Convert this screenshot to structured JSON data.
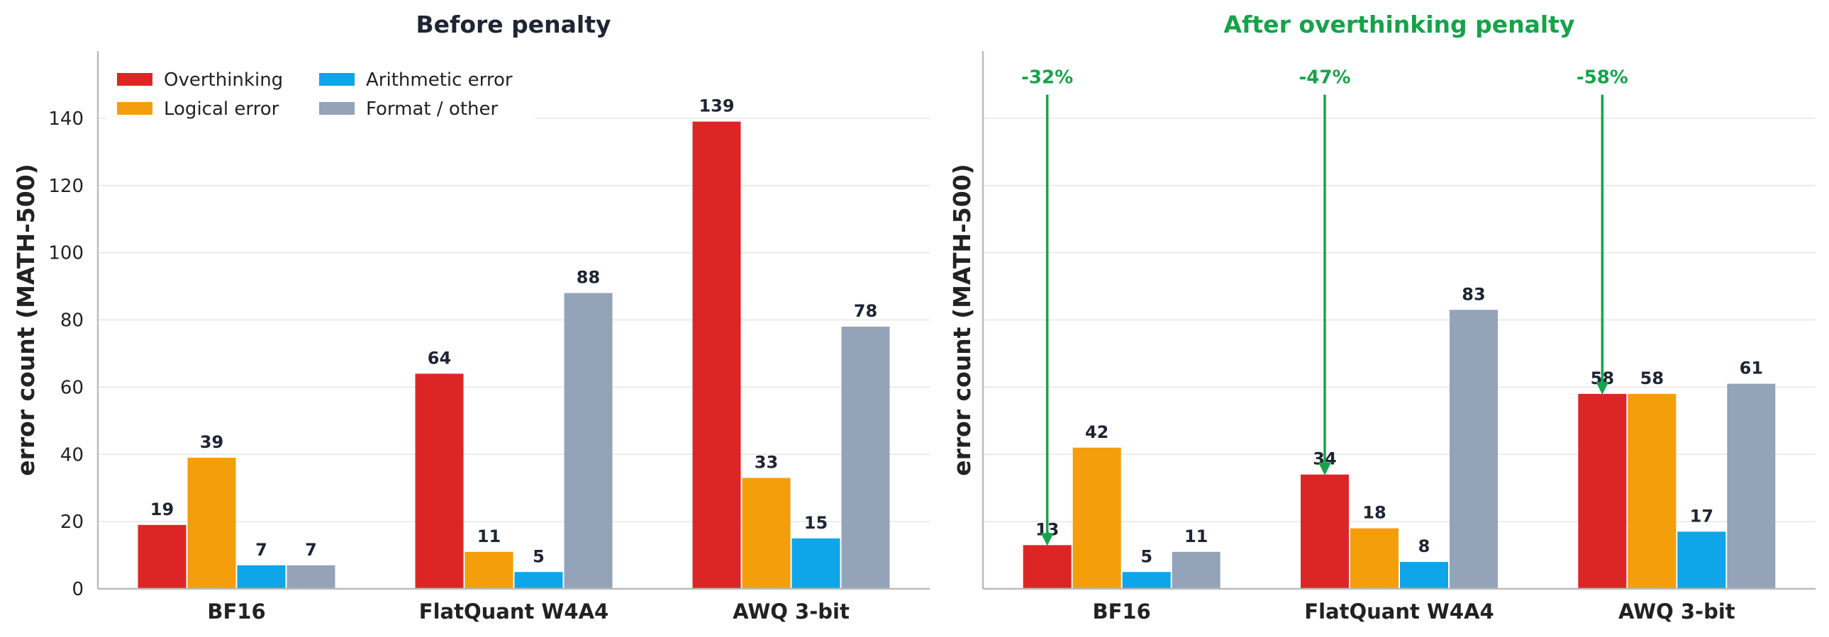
{
  "chart_data": [
    {
      "type": "bar",
      "title": "Before penalty",
      "title_color": "#1e2533",
      "ylabel": "error count (MATH-500)",
      "ylim": [
        0,
        160
      ],
      "yticks": [
        0,
        20,
        40,
        60,
        80,
        100,
        120,
        140
      ],
      "grid": true,
      "legend_position": "top-left",
      "categories": [
        "BF16",
        "FlatQuant W4A4",
        "AWQ 3-bit"
      ],
      "series": [
        {
          "name": "Overthinking",
          "color": "#dc2626",
          "values": [
            19,
            64,
            139
          ]
        },
        {
          "name": "Logical error",
          "color": "#f59e0b",
          "values": [
            39,
            11,
            33
          ]
        },
        {
          "name": "Arithmetic error",
          "color": "#0ea5e9",
          "values": [
            7,
            5,
            15
          ]
        },
        {
          "name": "Format / other",
          "color": "#94a3b8",
          "values": [
            7,
            88,
            78
          ]
        }
      ]
    },
    {
      "type": "bar",
      "title": "After overthinking penalty",
      "title_color": "#16a34a",
      "ylabel": "error count (MATH-500)",
      "ylim": [
        0,
        160
      ],
      "yticks": [
        0,
        20,
        40,
        60,
        80,
        100,
        120,
        140
      ],
      "grid": true,
      "categories": [
        "BF16",
        "FlatQuant W4A4",
        "AWQ 3-bit"
      ],
      "series": [
        {
          "name": "Overthinking",
          "color": "#dc2626",
          "values": [
            13,
            34,
            58
          ]
        },
        {
          "name": "Logical error",
          "color": "#f59e0b",
          "values": [
            42,
            18,
            58
          ]
        },
        {
          "name": "Arithmetic error",
          "color": "#0ea5e9",
          "values": [
            5,
            8,
            17
          ]
        },
        {
          "name": "Format / other",
          "color": "#94a3b8",
          "values": [
            11,
            83,
            61
          ]
        }
      ],
      "annotations": [
        {
          "category": "BF16",
          "label": "-32%",
          "from": 147,
          "to": 13,
          "color": "#16a34a"
        },
        {
          "category": "FlatQuant W4A4",
          "label": "-47%",
          "from": 147,
          "to": 34,
          "color": "#16a34a"
        },
        {
          "category": "AWQ 3-bit",
          "label": "-58%",
          "from": 147,
          "to": 58,
          "color": "#16a34a"
        }
      ]
    }
  ]
}
